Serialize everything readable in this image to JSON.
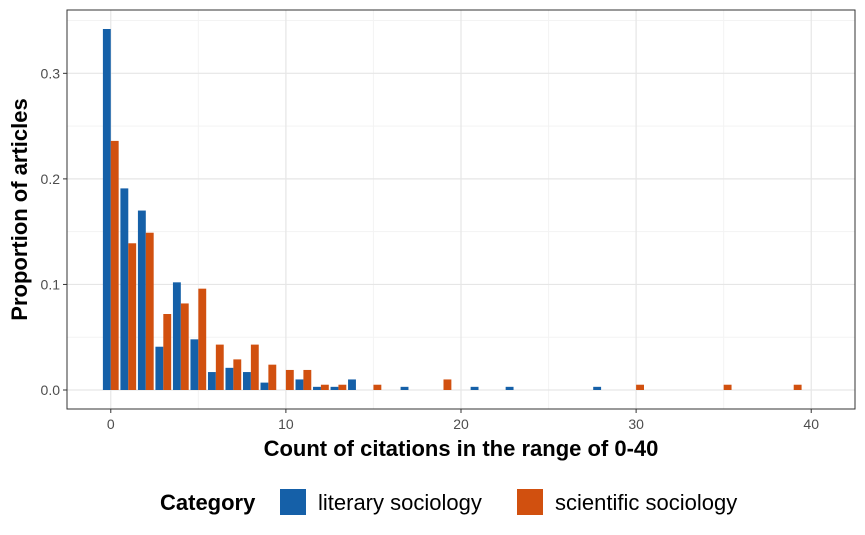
{
  "chart_data": {
    "type": "bar",
    "xlabel": "Count of citations in the range of 0-40",
    "ylabel": "Proportion of articles",
    "xlim": [
      -2.5,
      42.5
    ],
    "ylim": [
      -0.018,
      0.36
    ],
    "x_ticks": [
      0,
      10,
      20,
      30,
      40
    ],
    "x_tick_labels": [
      "0",
      "10",
      "20",
      "30",
      "40"
    ],
    "y_ticks": [
      0.0,
      0.1,
      0.2,
      0.3
    ],
    "y_tick_labels": [
      "0.0",
      "0.1",
      "0.2",
      "0.3"
    ],
    "grid": true,
    "legend": {
      "title": "Category",
      "position": "bottom"
    },
    "series": [
      {
        "name": "literary sociology",
        "color": "#1560a8",
        "points": [
          {
            "x": 0,
            "y": 0.342
          },
          {
            "x": 1,
            "y": 0.191
          },
          {
            "x": 2,
            "y": 0.17
          },
          {
            "x": 3,
            "y": 0.041
          },
          {
            "x": 4,
            "y": 0.102
          },
          {
            "x": 5,
            "y": 0.048
          },
          {
            "x": 6,
            "y": 0.017
          },
          {
            "x": 7,
            "y": 0.021
          },
          {
            "x": 8,
            "y": 0.017
          },
          {
            "x": 9,
            "y": 0.007
          },
          {
            "x": 11,
            "y": 0.01
          },
          {
            "x": 12,
            "y": 0.003
          },
          {
            "x": 13,
            "y": 0.003
          },
          {
            "x": 14,
            "y": 0.01
          },
          {
            "x": 17,
            "y": 0.003
          },
          {
            "x": 21,
            "y": 0.003
          },
          {
            "x": 23,
            "y": 0.003
          },
          {
            "x": 28,
            "y": 0.003
          }
        ]
      },
      {
        "name": "scientific sociology",
        "color": "#d1500f",
        "points": [
          {
            "x": 0,
            "y": 0.236
          },
          {
            "x": 1,
            "y": 0.139
          },
          {
            "x": 2,
            "y": 0.149
          },
          {
            "x": 3,
            "y": 0.072
          },
          {
            "x": 4,
            "y": 0.082
          },
          {
            "x": 5,
            "y": 0.096
          },
          {
            "x": 6,
            "y": 0.043
          },
          {
            "x": 7,
            "y": 0.029
          },
          {
            "x": 8,
            "y": 0.043
          },
          {
            "x": 9,
            "y": 0.024
          },
          {
            "x": 10,
            "y": 0.019
          },
          {
            "x": 11,
            "y": 0.019
          },
          {
            "x": 12,
            "y": 0.005
          },
          {
            "x": 13,
            "y": 0.005
          },
          {
            "x": 15,
            "y": 0.005
          },
          {
            "x": 19,
            "y": 0.01
          },
          {
            "x": 30,
            "y": 0.005
          },
          {
            "x": 35,
            "y": 0.005
          },
          {
            "x": 39,
            "y": 0.005
          }
        ]
      }
    ]
  }
}
